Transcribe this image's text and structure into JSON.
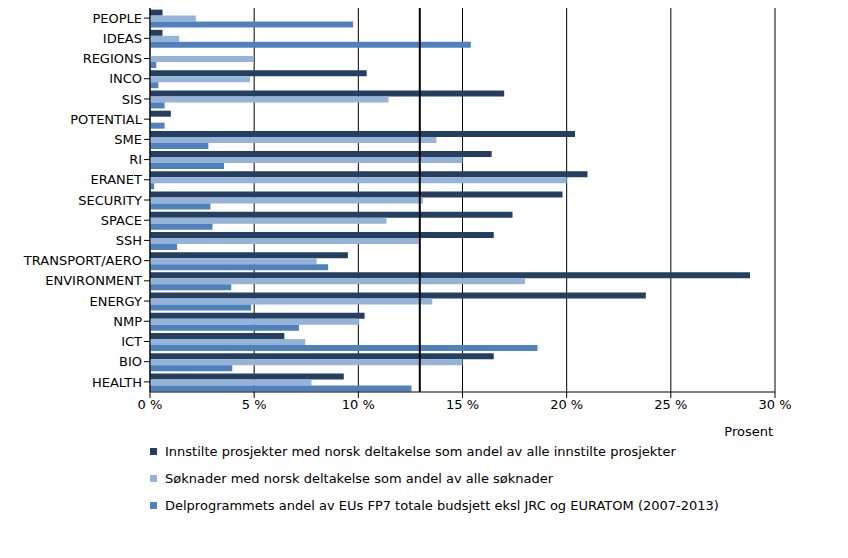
{
  "chart_data": {
    "type": "bar",
    "orientation": "horizontal",
    "grid": true,
    "legend": "bottom",
    "x_label": "Prosent",
    "categories": [
      "PEOPLE",
      "IDEAS",
      "REGIONS",
      "INCO",
      "SIS",
      "POTENTIAL",
      "SME",
      "RI",
      "ERANET",
      "SECURITY",
      "SPACE",
      "SSH",
      "TRANSPORT/AERO",
      "ENVIRONMENT",
      "ENERGY",
      "NMP",
      "ICT",
      "BIO",
      "HEALTH"
    ],
    "series": [
      {
        "name": "Innstilte prosjekter med norsk deltakelse som andel av alle innstilte prosjekter",
        "color": "#243F60",
        "values": [
          0.6,
          0.6,
          0,
          10.4,
          17.0,
          1.0,
          20.4,
          16.4,
          21.0,
          19.8,
          17.4,
          16.5,
          9.5,
          28.8,
          23.8,
          10.3,
          6.45,
          16.5,
          9.3
        ]
      },
      {
        "name": "Søknader med norsk deltakelse som andel av alle søknader",
        "color": "#95B3D7",
        "values": [
          2.2,
          1.4,
          4.95,
          4.8,
          11.45,
          0,
          13.75,
          15.0,
          20.0,
          13.1,
          11.35,
          12.9,
          8.0,
          18.0,
          13.55,
          10.05,
          7.45,
          15.0,
          7.75
        ]
      },
      {
        "name": "Delprogrammets andel av EUs FP7 totale budsjett eksl JRC og EURATOM (2007-2013)",
        "color": "#4F81BD",
        "values": [
          9.75,
          15.4,
          0.3,
          0.4,
          0.7,
          0.7,
          2.8,
          3.55,
          0.2,
          2.9,
          3.0,
          1.3,
          8.55,
          3.9,
          4.85,
          7.15,
          18.6,
          3.95,
          12.55
        ]
      }
    ],
    "reference_line": 12.95,
    "xlim": [
      0,
      30
    ],
    "xticks": [
      {
        "value": 0,
        "label": "0 %"
      },
      {
        "value": 5,
        "label": "5 %"
      },
      {
        "value": 10,
        "label": "10 %"
      },
      {
        "value": 15,
        "label": "15 %"
      },
      {
        "value": 20,
        "label": "20 %"
      },
      {
        "value": 25,
        "label": "25 %"
      },
      {
        "value": 30,
        "label": "30 %"
      }
    ]
  }
}
